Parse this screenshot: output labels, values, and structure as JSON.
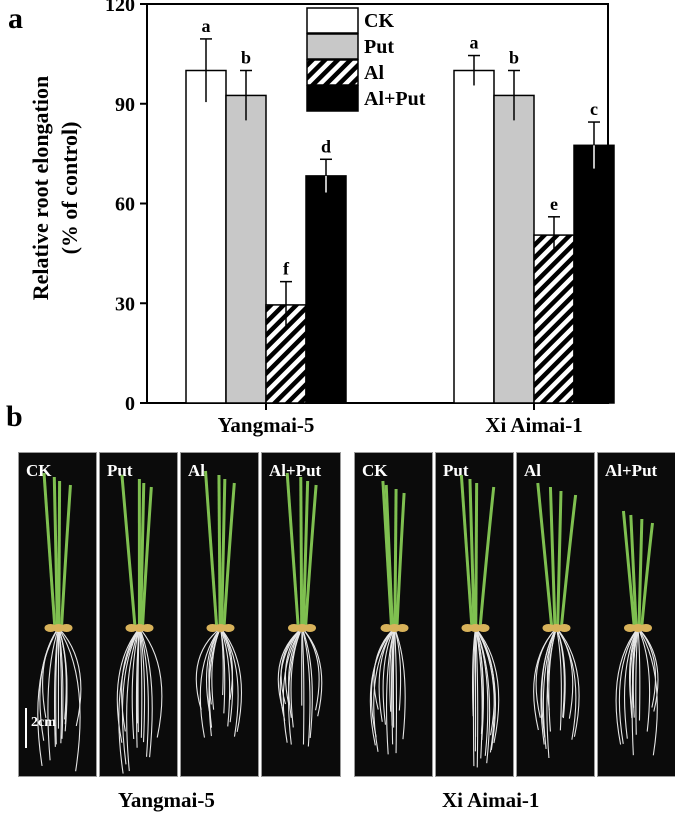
{
  "panel_a_letter": "a",
  "panel_b_letter": "b",
  "chart_data": {
    "type": "bar",
    "ylabel_line1": "Relative root elongation",
    "ylabel_line2": "(% of control)",
    "xlabel": "",
    "ylim": [
      0,
      120
    ],
    "yticks": [
      "0",
      "30",
      "60",
      "90",
      "120"
    ],
    "categories": [
      "Yangmai-5",
      "Xi Aimai-1"
    ],
    "series": [
      {
        "name": "CK",
        "values": [
          100,
          100
        ],
        "errors": [
          9.5,
          4.5
        ],
        "letters": [
          "a",
          "a"
        ],
        "fill": "#ffffff"
      },
      {
        "name": "Put",
        "values": [
          92.5,
          92.5
        ],
        "errors": [
          7.5,
          7.5
        ],
        "letters": [
          "b",
          "b"
        ],
        "fill": "#c8c8c8"
      },
      {
        "name": "Al",
        "values": [
          29.5,
          50.5
        ],
        "errors": [
          7,
          5.5
        ],
        "letters": [
          "f",
          "e"
        ],
        "fill": "hatch"
      },
      {
        "name": "Al+Put",
        "values": [
          68.3,
          77.5
        ],
        "errors": [
          5,
          7
        ],
        "letters": [
          "d",
          "c"
        ],
        "fill": "#000000"
      }
    ],
    "legend_position": "top-center",
    "grid": false
  },
  "photos": {
    "groups": [
      {
        "cultivar": "Yangmai-5",
        "panels": [
          "CK",
          "Put",
          "Al",
          "Al+Put"
        ]
      },
      {
        "cultivar": "Xi Aimai-1",
        "panels": [
          "CK",
          "Put",
          "Al",
          "Al+Put"
        ]
      }
    ],
    "scale_label": "2cm",
    "colors": {
      "background": "#0b0b0b",
      "shoot": "#7fc050",
      "root": "#e6e6e6",
      "seed": "#d8b25a"
    }
  }
}
